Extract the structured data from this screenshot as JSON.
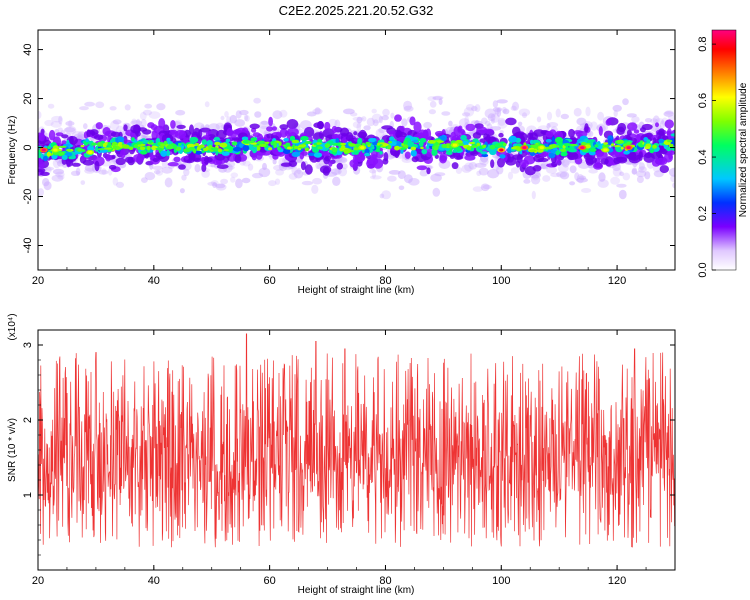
{
  "page_title": "C2E2.2025.221.20.52.G32",
  "chart_data": [
    {
      "type": "heatmap",
      "title": "C2E2.2025.221.20.52.G32",
      "xlabel": "Height of straight line (km)",
      "ylabel": "Frequency (Hz)",
      "xlim": [
        20,
        130
      ],
      "ylim": [
        -50,
        48
      ],
      "xticks": [
        20,
        40,
        60,
        80,
        100,
        120
      ],
      "yticks": [
        -40,
        -20,
        0,
        20,
        40
      ],
      "colorbar": {
        "label": "Normalized spectral amplitude",
        "range": [
          0.0,
          0.85
        ],
        "ticks": [
          "0.0",
          "0.2",
          "0.4",
          "0.6",
          "0.8"
        ],
        "colors": [
          "#ffffff",
          "#7a00ff",
          "#0030ff",
          "#00e0ff",
          "#00ff60",
          "#80ff00",
          "#ffff00",
          "#ff8000",
          "#ff0000",
          "#ff0080"
        ]
      },
      "band_center_hz": [
        {
          "x": 20,
          "y": -2
        },
        {
          "x": 25,
          "y": -1
        },
        {
          "x": 30,
          "y": 0
        },
        {
          "x": 35,
          "y": 1
        },
        {
          "x": 40,
          "y": 1
        },
        {
          "x": 45,
          "y": 0
        },
        {
          "x": 50,
          "y": 0
        },
        {
          "x": 55,
          "y": 1
        },
        {
          "x": 60,
          "y": 1
        },
        {
          "x": 65,
          "y": 1
        },
        {
          "x": 70,
          "y": 0
        },
        {
          "x": 75,
          "y": 0
        },
        {
          "x": 80,
          "y": 1
        },
        {
          "x": 85,
          "y": 1
        },
        {
          "x": 90,
          "y": 1
        },
        {
          "x": 95,
          "y": 1
        },
        {
          "x": 100,
          "y": 0
        },
        {
          "x": 105,
          "y": 0
        },
        {
          "x": 110,
          "y": 0
        },
        {
          "x": 115,
          "y": 0
        },
        {
          "x": 120,
          "y": 1
        },
        {
          "x": 125,
          "y": 1
        },
        {
          "x": 130,
          "y": 2
        }
      ],
      "peak_points": [
        {
          "x": 21,
          "y": -1,
          "amp": 0.85
        },
        {
          "x": 23,
          "y": -1,
          "amp": 0.6
        },
        {
          "x": 29,
          "y": -2,
          "amp": 0.6
        },
        {
          "x": 52,
          "y": 1,
          "amp": 0.55
        },
        {
          "x": 76,
          "y": 0,
          "amp": 0.6
        },
        {
          "x": 92,
          "y": 1,
          "amp": 0.6
        },
        {
          "x": 100,
          "y": -1,
          "amp": 0.8
        },
        {
          "x": 104,
          "y": 0,
          "amp": 0.85
        },
        {
          "x": 107,
          "y": 0,
          "amp": 0.6
        },
        {
          "x": 114,
          "y": 0,
          "amp": 0.85
        },
        {
          "x": 118,
          "y": -1,
          "amp": 0.6
        },
        {
          "x": 122,
          "y": 0,
          "amp": 0.85
        }
      ]
    },
    {
      "type": "line",
      "xlabel": "Height of straight line (km)",
      "ylabel": "SNR (10 * v/v)",
      "y_multiplier": "(x10⁴)",
      "xlim": [
        20,
        130
      ],
      "ylim": [
        0.0,
        3.2
      ],
      "xticks": [
        20,
        40,
        60,
        80,
        100,
        120
      ],
      "yticks": [
        1,
        2,
        3
      ],
      "series_color": "#ee3333",
      "mean": 1.5,
      "typical_range": [
        0.3,
        2.9
      ],
      "max_points": [
        {
          "x": 56,
          "y": 3.15
        },
        {
          "x": 68,
          "y": 3.05
        },
        {
          "x": 73,
          "y": 2.95
        },
        {
          "x": 30,
          "y": 2.9
        },
        {
          "x": 123,
          "y": 2.95
        }
      ]
    }
  ]
}
